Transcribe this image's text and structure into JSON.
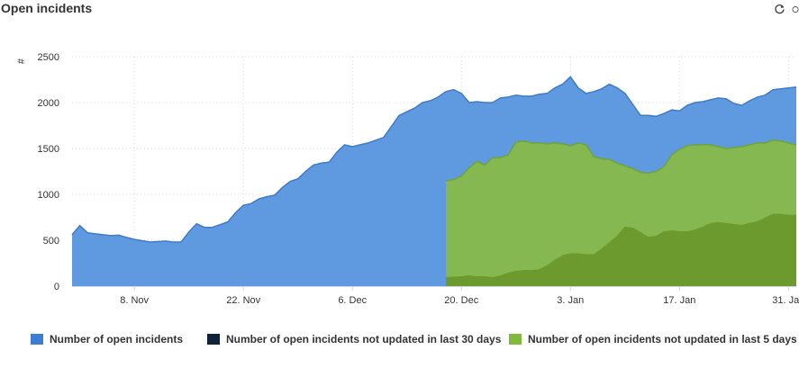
{
  "header": {
    "title": "Open incidents"
  },
  "toolbar": {
    "refresh_icon": "refresh-icon",
    "more_icon": "circle-icon"
  },
  "chart_data": {
    "type": "area",
    "title": "Open incidents",
    "ylabel": "#",
    "ylim": [
      0,
      2500
    ],
    "y_ticks": [
      0,
      500,
      1000,
      1500,
      2000,
      2500
    ],
    "y_tick_labels": [
      "0",
      "500",
      "1000",
      "1500",
      "2000",
      "2500"
    ],
    "x_range": [
      "2021-10-31",
      "2022-02-01"
    ],
    "x_ticks": [
      "2021-11-08",
      "2021-11-22",
      "2021-12-06",
      "2021-12-20",
      "2022-01-03",
      "2022-01-17",
      "2022-01-31"
    ],
    "x_tick_labels": [
      "8. Nov",
      "22. Nov",
      "6. Dec",
      "20. Dec",
      "3. Jan",
      "17. Jan",
      "31. Jan"
    ],
    "grid": true,
    "legend": "bottom",
    "series": [
      {
        "name": "Number of open incidents",
        "color": "#5f9ae1",
        "line_color": "#3f7cc6",
        "x": [
          "2021-10-31",
          "2021-11-01",
          "2021-11-02",
          "2021-11-03",
          "2021-11-04",
          "2021-11-05",
          "2021-11-06",
          "2021-11-07",
          "2021-11-08",
          "2021-11-09",
          "2021-11-10",
          "2021-11-11",
          "2021-11-12",
          "2021-11-13",
          "2021-11-14",
          "2021-11-15",
          "2021-11-16",
          "2021-11-17",
          "2021-11-18",
          "2021-11-19",
          "2021-11-20",
          "2021-11-21",
          "2021-11-22",
          "2021-11-23",
          "2021-11-24",
          "2021-11-25",
          "2021-11-26",
          "2021-11-27",
          "2021-11-28",
          "2021-11-29",
          "2021-11-30",
          "2021-12-01",
          "2021-12-02",
          "2021-12-03",
          "2021-12-04",
          "2021-12-05",
          "2021-12-06",
          "2021-12-07",
          "2021-12-08",
          "2021-12-09",
          "2021-12-10",
          "2021-12-11",
          "2021-12-12",
          "2021-12-13",
          "2021-12-14",
          "2021-12-15",
          "2021-12-16",
          "2021-12-17",
          "2021-12-18",
          "2021-12-19",
          "2021-12-20",
          "2021-12-21",
          "2021-12-22",
          "2021-12-23",
          "2021-12-24",
          "2021-12-25",
          "2021-12-26",
          "2021-12-27",
          "2021-12-28",
          "2021-12-29",
          "2021-12-30",
          "2021-12-31",
          "2022-01-01",
          "2022-01-02",
          "2022-01-03",
          "2022-01-04",
          "2022-01-05",
          "2022-01-06",
          "2022-01-07",
          "2022-01-08",
          "2022-01-09",
          "2022-01-10",
          "2022-01-11",
          "2022-01-12",
          "2022-01-13",
          "2022-01-14",
          "2022-01-15",
          "2022-01-16",
          "2022-01-17",
          "2022-01-18",
          "2022-01-19",
          "2022-01-20",
          "2022-01-21",
          "2022-01-22",
          "2022-01-23",
          "2022-01-24",
          "2022-01-25",
          "2022-01-26",
          "2022-01-27",
          "2022-01-28",
          "2022-01-29",
          "2022-01-30",
          "2022-01-31",
          "2022-02-01"
        ],
        "values": [
          560,
          660,
          580,
          570,
          560,
          550,
          555,
          530,
          510,
          495,
          480,
          485,
          490,
          480,
          480,
          590,
          680,
          640,
          640,
          670,
          700,
          800,
          880,
          900,
          950,
          975,
          990,
          1075,
          1140,
          1170,
          1250,
          1320,
          1340,
          1350,
          1460,
          1540,
          1520,
          1540,
          1560,
          1590,
          1620,
          1740,
          1860,
          1900,
          1940,
          2000,
          2020,
          2060,
          2120,
          2140,
          2100,
          2000,
          2010,
          2000,
          2000,
          2050,
          2060,
          2080,
          2070,
          2070,
          2090,
          2100,
          2160,
          2200,
          2280,
          2160,
          2100,
          2120,
          2150,
          2200,
          2160,
          2100,
          1980,
          1860,
          1860,
          1850,
          1880,
          1920,
          1910,
          1970,
          2000,
          2010,
          2030,
          2050,
          2040,
          1990,
          1970,
          2020,
          2060,
          2080,
          2140,
          2150,
          2160,
          2170
        ]
      },
      {
        "name": "Number of open incidents not updated in last 30 days",
        "color": "#0d233a",
        "x": [],
        "values": []
      },
      {
        "name": "Number of open incidents not updated in last 5 days",
        "color": "#85b850",
        "line_color": "#6fa43a",
        "x": [
          "2021-12-18",
          "2021-12-19",
          "2021-12-20",
          "2021-12-21",
          "2021-12-22",
          "2021-12-23",
          "2021-12-24",
          "2021-12-25",
          "2021-12-26",
          "2021-12-27",
          "2021-12-28",
          "2021-12-29",
          "2021-12-30",
          "2021-12-31",
          "2022-01-01",
          "2022-01-02",
          "2022-01-03",
          "2022-01-04",
          "2022-01-05",
          "2022-01-06",
          "2022-01-07",
          "2022-01-08",
          "2022-01-09",
          "2022-01-10",
          "2022-01-11",
          "2022-01-12",
          "2022-01-13",
          "2022-01-14",
          "2022-01-15",
          "2022-01-16",
          "2022-01-17",
          "2022-01-18",
          "2022-01-19",
          "2022-01-20",
          "2022-01-21",
          "2022-01-22",
          "2022-01-23",
          "2022-01-24",
          "2022-01-25",
          "2022-01-26",
          "2022-01-27",
          "2022-01-28",
          "2022-01-29",
          "2022-01-30",
          "2022-01-31",
          "2022-02-01"
        ],
        "values": [
          1150,
          1160,
          1200,
          1290,
          1360,
          1320,
          1400,
          1400,
          1430,
          1570,
          1580,
          1560,
          1560,
          1550,
          1560,
          1550,
          1530,
          1560,
          1540,
          1410,
          1390,
          1380,
          1340,
          1310,
          1280,
          1240,
          1230,
          1250,
          1300,
          1430,
          1490,
          1530,
          1540,
          1540,
          1540,
          1520,
          1500,
          1510,
          1520,
          1540,
          1560,
          1560,
          1590,
          1580,
          1560,
          1540
        ]
      },
      {
        "name": "",
        "color": "#6c9a2e",
        "x": [
          "2021-12-18",
          "2021-12-19",
          "2021-12-20",
          "2021-12-21",
          "2021-12-22",
          "2021-12-23",
          "2021-12-24",
          "2021-12-25",
          "2021-12-26",
          "2021-12-27",
          "2021-12-28",
          "2021-12-29",
          "2021-12-30",
          "2021-12-31",
          "2022-01-01",
          "2022-01-02",
          "2022-01-03",
          "2022-01-04",
          "2022-01-05",
          "2022-01-06",
          "2022-01-07",
          "2022-01-08",
          "2022-01-09",
          "2022-01-10",
          "2022-01-11",
          "2022-01-12",
          "2022-01-13",
          "2022-01-14",
          "2022-01-15",
          "2022-01-16",
          "2022-01-17",
          "2022-01-18",
          "2022-01-19",
          "2022-01-20",
          "2022-01-21",
          "2022-01-22",
          "2022-01-23",
          "2022-01-24",
          "2022-01-25",
          "2022-01-26",
          "2022-01-27",
          "2022-01-28",
          "2022-01-29",
          "2022-01-30",
          "2022-01-31",
          "2022-02-01"
        ],
        "values": [
          90,
          95,
          100,
          110,
          100,
          100,
          90,
          110,
          140,
          160,
          170,
          170,
          175,
          220,
          280,
          330,
          350,
          350,
          340,
          340,
          400,
          470,
          540,
          640,
          630,
          580,
          530,
          540,
          590,
          600,
          590,
          590,
          610,
          640,
          680,
          690,
          680,
          670,
          660,
          680,
          700,
          740,
          780,
          780,
          770,
          770
        ]
      }
    ]
  },
  "legend_items": [
    {
      "label": "Number of open incidents",
      "color": "#3a7fd5"
    },
    {
      "label": "Number of open incidents not updated in last 30 days",
      "color": "#0d233a"
    },
    {
      "label": "Number of open incidents not updated in last 5 days",
      "color": "#7fba3a"
    }
  ]
}
